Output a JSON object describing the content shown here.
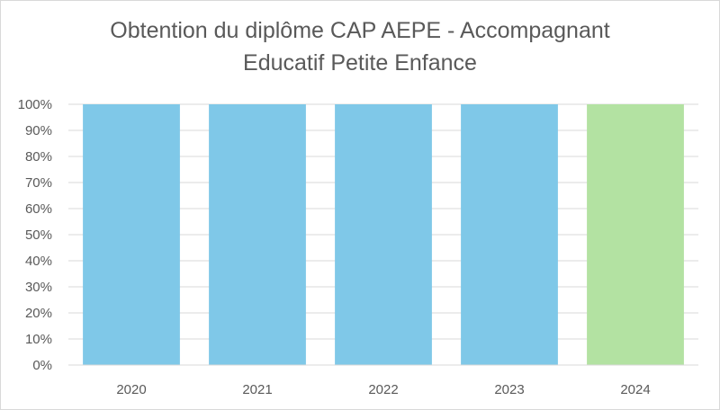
{
  "chart_data": {
    "type": "bar",
    "title_lines": [
      "Obtention du diplôme CAP AEPE - Accompagnant",
      "Educatif Petite Enfance"
    ],
    "categories": [
      "2020",
      "2021",
      "2022",
      "2023",
      "2024"
    ],
    "values": [
      100,
      100,
      100,
      100,
      100
    ],
    "bar_colors": [
      "#7fc8e8",
      "#7fc8e8",
      "#7fc8e8",
      "#7fc8e8",
      "#b3e2a2"
    ],
    "ylim": [
      0,
      100
    ],
    "yticks": [
      0,
      10,
      20,
      30,
      40,
      50,
      60,
      70,
      80,
      90,
      100
    ],
    "ytick_labels": [
      "0%",
      "10%",
      "20%",
      "30%",
      "40%",
      "50%",
      "60%",
      "70%",
      "80%",
      "90%",
      "100%"
    ],
    "grid": true,
    "legend": "none"
  }
}
